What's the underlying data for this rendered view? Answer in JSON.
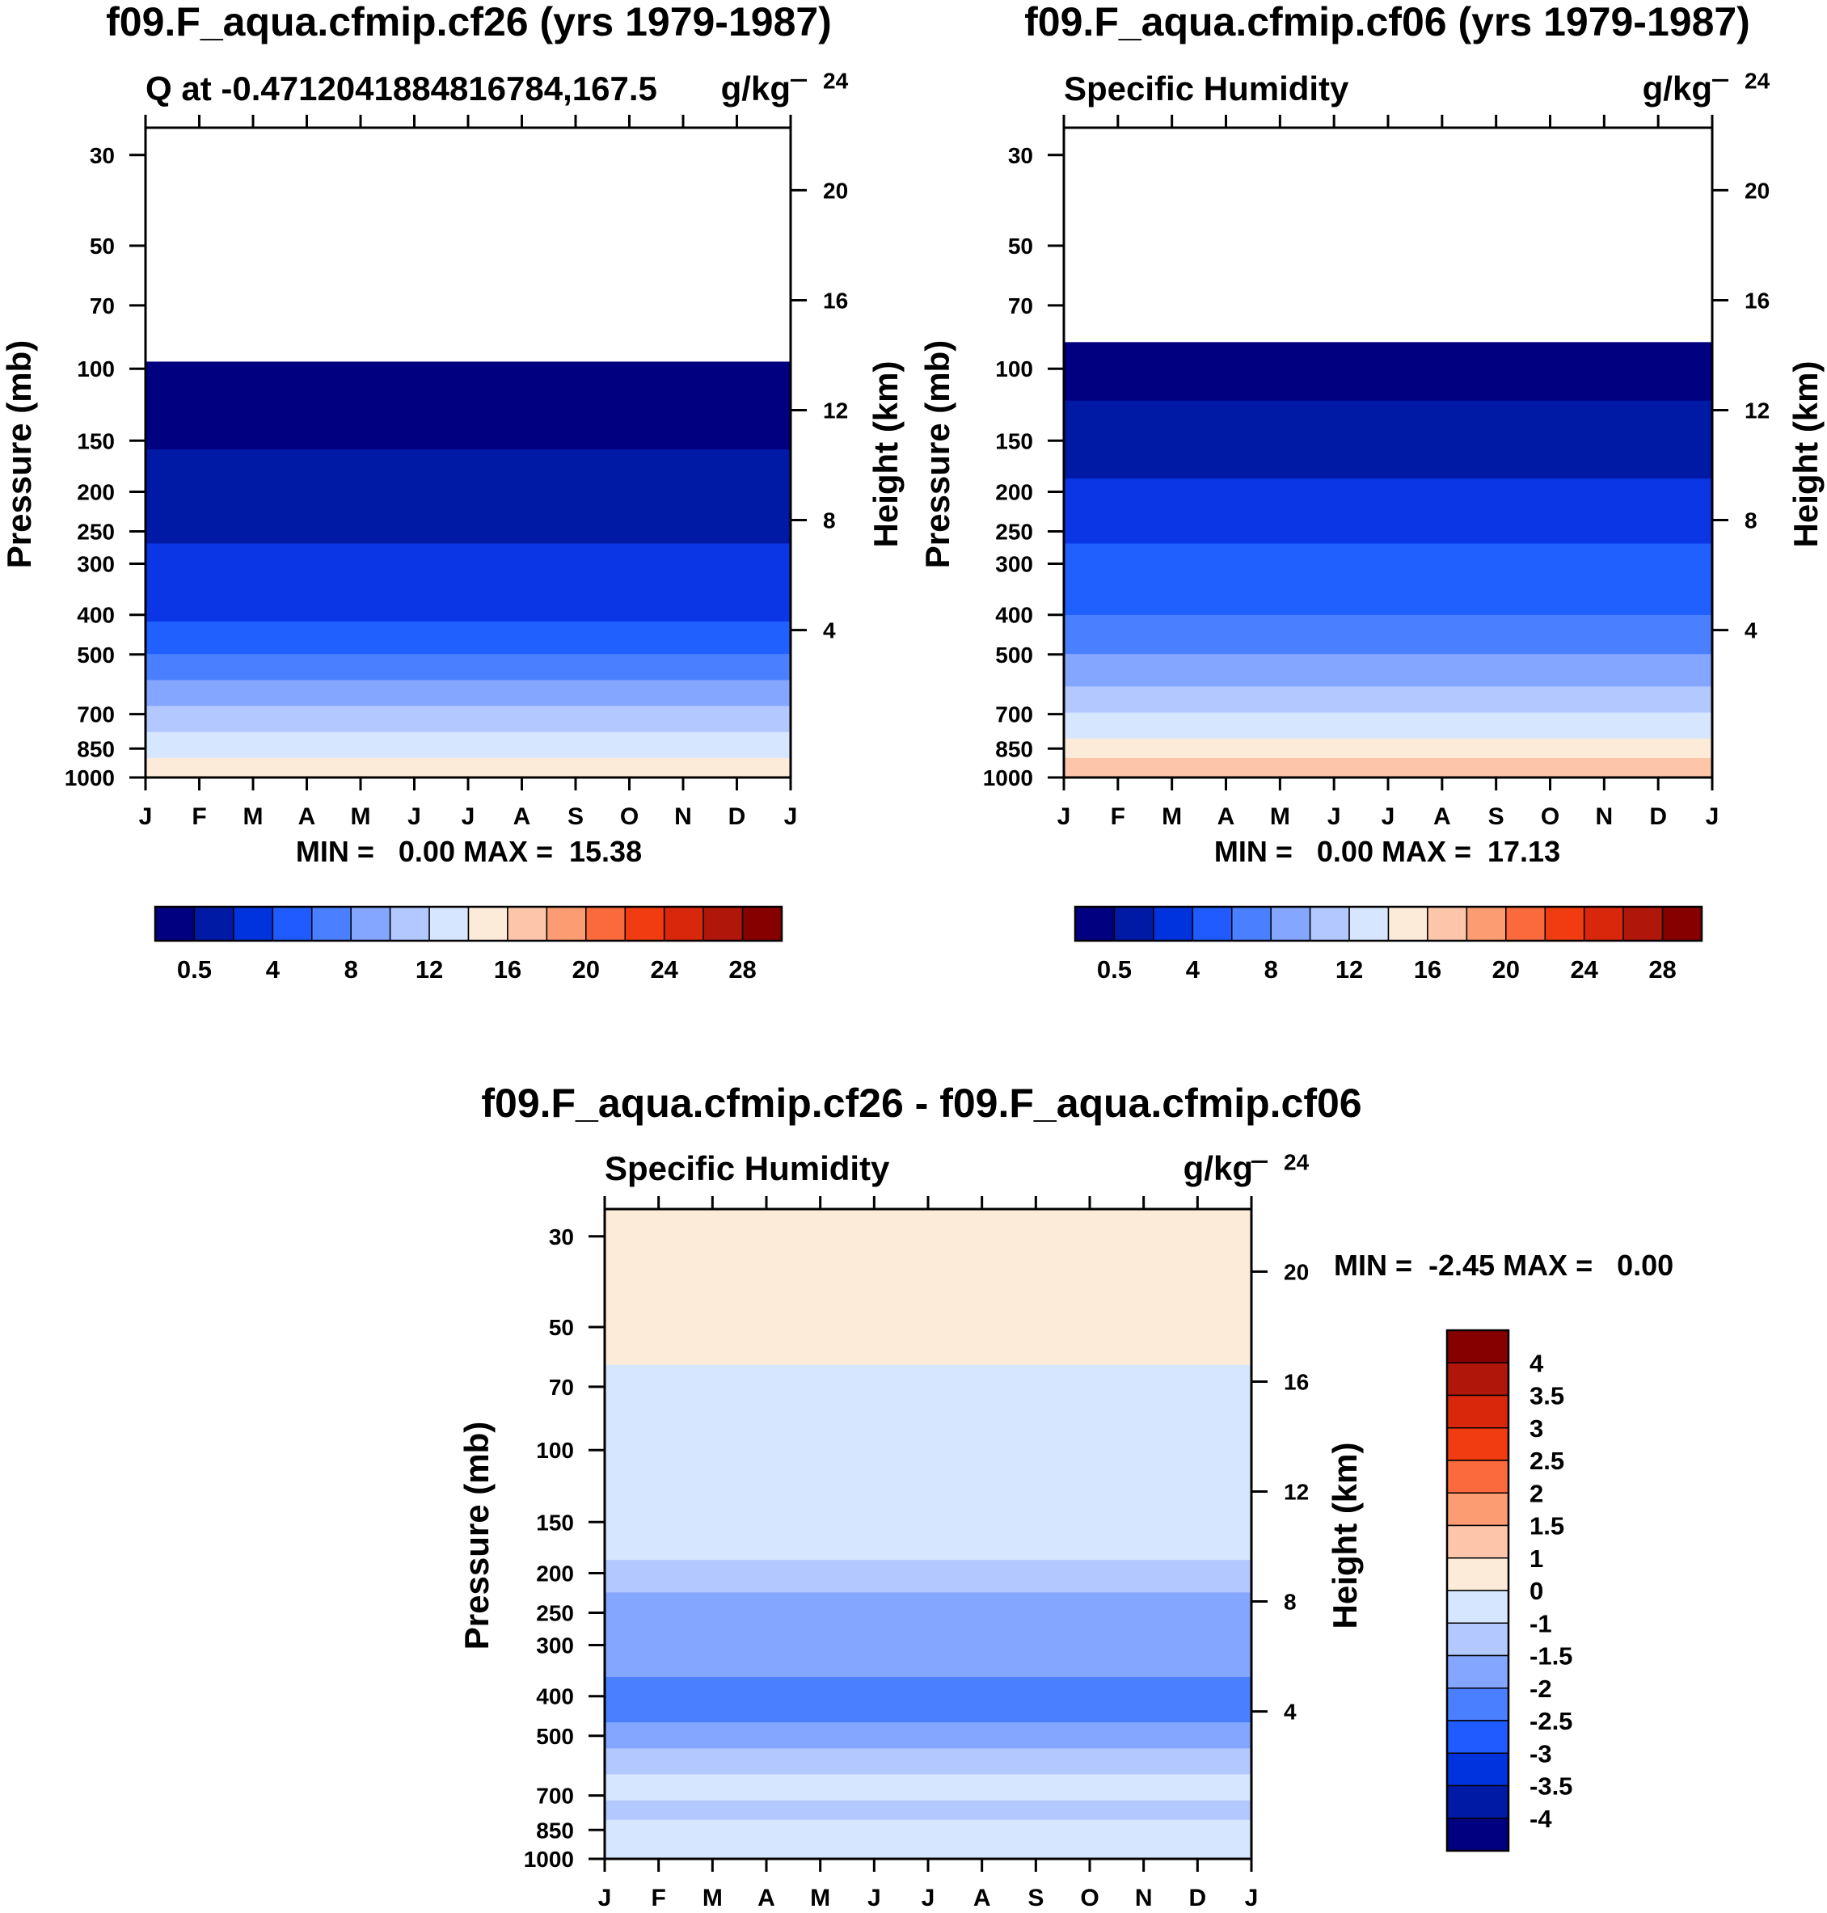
{
  "chart_data": [
    {
      "type": "heatmap",
      "title": "f09.F_aqua.cfmip.cf26 (yrs 1979-1987)",
      "subtitle_left": "Q at -0.4712041884816784,167.5",
      "subtitle_right": "g/kg",
      "ylabel": "Pressure (mb)",
      "ylabel_right": "Height (km)",
      "stats": "MIN =   0.00 MAX =  15.38",
      "x_ticks": [
        "J",
        "F",
        "M",
        "A",
        "M",
        "J",
        "J",
        "A",
        "S",
        "O",
        "N",
        "D",
        "J"
      ],
      "y_ticks": [
        "30",
        "50",
        "70",
        "100",
        "150",
        "200",
        "250",
        "300",
        "400",
        "500",
        "700",
        "850",
        "1000"
      ],
      "y_ticks_values": [
        30,
        50,
        70,
        100,
        150,
        200,
        250,
        300,
        400,
        500,
        700,
        850,
        1000
      ],
      "height_ticks": [
        "24",
        "20",
        "16",
        "12",
        "8",
        "4"
      ],
      "height_ticks_values": [
        24,
        20,
        16,
        12,
        8,
        4
      ],
      "levels": [
        0.5,
        4,
        8,
        12,
        16,
        20,
        24,
        28
      ],
      "colorbar_labels": [
        "0.5",
        "4",
        "8",
        "12",
        "16",
        "20",
        "24",
        "28"
      ],
      "colorbar_colors": [
        "#000080",
        "#001aa6",
        "#0033dd",
        "#1f5bff",
        "#4a7fff",
        "#85a6ff",
        "#b3c8ff",
        "#d6e6ff",
        "#fdebda",
        "#fdc6aa",
        "#fc9c73",
        "#fb6a3d",
        "#f03c10",
        "#d8270a",
        "#b0160a",
        "#870000"
      ],
      "bands": [
        {
          "top": 360,
          "color": "#000080"
        },
        {
          "top": 495,
          "color": "#001aa6"
        },
        {
          "top": 640,
          "color": "#0a36e6"
        },
        {
          "top": 760,
          "color": "#2060ff"
        },
        {
          "top": 810,
          "color": "#4a7fff"
        },
        {
          "top": 850,
          "color": "#85a6ff"
        },
        {
          "top": 890,
          "color": "#b3c8ff"
        },
        {
          "top": 930,
          "color": "#d6e6ff"
        },
        {
          "top": 970,
          "color": "#fdebda"
        }
      ]
    },
    {
      "type": "heatmap",
      "title": "f09.F_aqua.cfmip.cf06 (yrs 1979-1987)",
      "subtitle_left": "Specific Humidity",
      "subtitle_right": "g/kg",
      "ylabel": "Pressure (mb)",
      "ylabel_right": "Height (km)",
      "stats": "MIN =   0.00 MAX =  17.13",
      "x_ticks": [
        "J",
        "F",
        "M",
        "A",
        "M",
        "J",
        "J",
        "A",
        "S",
        "O",
        "N",
        "D",
        "J"
      ],
      "y_ticks": [
        "30",
        "50",
        "70",
        "100",
        "150",
        "200",
        "250",
        "300",
        "400",
        "500",
        "700",
        "850",
        "1000"
      ],
      "y_ticks_values": [
        30,
        50,
        70,
        100,
        150,
        200,
        250,
        300,
        400,
        500,
        700,
        850,
        1000
      ],
      "height_ticks": [
        "24",
        "20",
        "16",
        "12",
        "8",
        "4"
      ],
      "height_ticks_values": [
        24,
        20,
        16,
        12,
        8,
        4
      ],
      "levels": [
        0.5,
        4,
        8,
        12,
        16,
        20,
        24,
        28
      ],
      "colorbar_labels": [
        "0.5",
        "4",
        "8",
        "12",
        "16",
        "20",
        "24",
        "28"
      ],
      "colorbar_colors": [
        "#000080",
        "#001aa6",
        "#0033dd",
        "#1f5bff",
        "#4a7fff",
        "#85a6ff",
        "#b3c8ff",
        "#d6e6ff",
        "#fdebda",
        "#fdc6aa",
        "#fc9c73",
        "#fb6a3d",
        "#f03c10",
        "#d8270a",
        "#b0160a",
        "#870000"
      ],
      "bands": [
        {
          "top": 330,
          "color": "#000080"
        },
        {
          "top": 420,
          "color": "#001aa6"
        },
        {
          "top": 540,
          "color": "#0a36e6"
        },
        {
          "top": 640,
          "color": "#2060ff"
        },
        {
          "top": 750,
          "color": "#4a7fff"
        },
        {
          "top": 810,
          "color": "#85a6ff"
        },
        {
          "top": 860,
          "color": "#b3c8ff"
        },
        {
          "top": 900,
          "color": "#d6e6ff"
        },
        {
          "top": 940,
          "color": "#fdebda"
        },
        {
          "top": 970,
          "color": "#fdc6aa"
        }
      ]
    },
    {
      "type": "heatmap",
      "title": "f09.F_aqua.cfmip.cf26 - f09.F_aqua.cfmip.cf06",
      "subtitle_left": "Specific Humidity",
      "subtitle_right": "g/kg",
      "ylabel": "Pressure (mb)",
      "ylabel_right": "Height (km)",
      "stats": "MIN =  -2.45 MAX =   0.00",
      "x_ticks": [
        "J",
        "F",
        "M",
        "A",
        "M",
        "J",
        "J",
        "A",
        "S",
        "O",
        "N",
        "D",
        "J"
      ],
      "y_ticks": [
        "30",
        "50",
        "70",
        "100",
        "150",
        "200",
        "250",
        "300",
        "400",
        "500",
        "700",
        "850",
        "1000"
      ],
      "y_ticks_values": [
        30,
        50,
        70,
        100,
        150,
        200,
        250,
        300,
        400,
        500,
        700,
        850,
        1000
      ],
      "height_ticks": [
        "24",
        "20",
        "16",
        "12",
        "8",
        "4"
      ],
      "height_ticks_values": [
        24,
        20,
        16,
        12,
        8,
        4
      ],
      "levels": [
        -4,
        -3.5,
        -3,
        -2.5,
        -2,
        -1.5,
        -1,
        0,
        1,
        1.5,
        2,
        2.5,
        3,
        3.5,
        4
      ],
      "colorbar_labels": [
        "4",
        "3.5",
        "3",
        "2.5",
        "2",
        "1.5",
        "1",
        "0",
        "-1",
        "-1.5",
        "-2",
        "-2.5",
        "-3",
        "-3.5",
        "-4"
      ],
      "colorbar_colors": [
        "#870000",
        "#b0160a",
        "#d8270a",
        "#f03c10",
        "#fb6a3d",
        "#fc9c73",
        "#fdc6aa",
        "#fdebda",
        "#d6e6ff",
        "#b3c8ff",
        "#85a6ff",
        "#4a7fff",
        "#1f5bff",
        "#0033dd",
        "#001aa6",
        "#000080"
      ],
      "bands": [
        {
          "top": 0,
          "color": "#fdebda"
        },
        {
          "top": 240,
          "color": "#d6e6ff"
        },
        {
          "top": 540,
          "color": "#b3c8ff"
        },
        {
          "top": 590,
          "color": "#85a6ff"
        },
        {
          "top": 720,
          "color": "#4a7fff"
        },
        {
          "top": 790,
          "color": "#85a6ff"
        },
        {
          "top": 830,
          "color": "#b3c8ff"
        },
        {
          "top": 870,
          "color": "#d6e6ff"
        },
        {
          "top": 910,
          "color": "#b3c8ff"
        },
        {
          "top": 940,
          "color": "#d6e6ff"
        }
      ]
    }
  ]
}
